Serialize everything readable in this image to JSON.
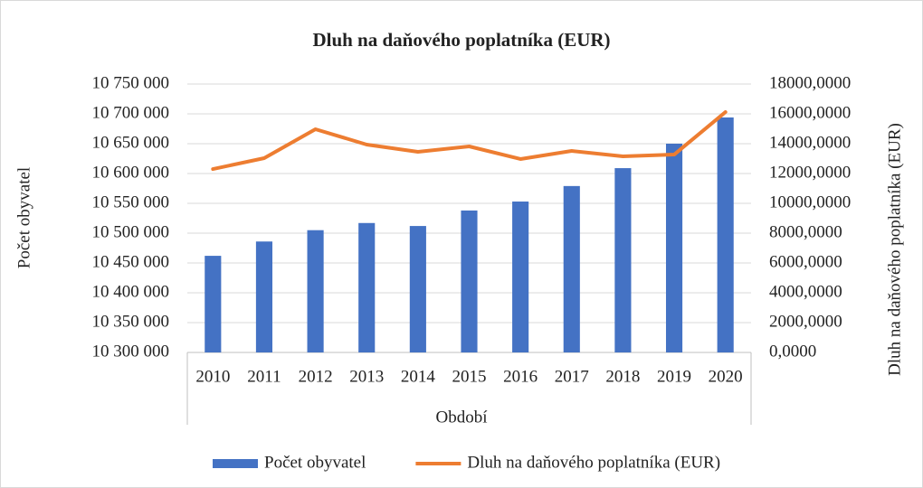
{
  "chart_data": {
    "type": "bar_line",
    "title": "Dluh na daňového poplatníka (EUR)",
    "x_label": "Období",
    "y_label": "Počet obyvatel",
    "y2_label": "Dluh na daňového poplatníka (EUR)",
    "categories": [
      "2010",
      "2011",
      "2012",
      "2013",
      "2014",
      "2015",
      "2016",
      "2017",
      "2018",
      "2019",
      "2020"
    ],
    "series": [
      {
        "name": "Počet obyvatel",
        "type": "bar",
        "color": "#4472c4",
        "values": [
          10462000,
          10486000,
          10505000,
          10517000,
          10512000,
          10538000,
          10553000,
          10579000,
          10609000,
          10650000,
          10694000
        ]
      },
      {
        "name": "Dluh na daňového poplatníka (EUR)",
        "type": "line",
        "axis": "y2",
        "color": "#ed7d31",
        "values": [
          12300,
          13030,
          14970,
          13940,
          13455,
          13818,
          12970,
          13515,
          13150,
          13270,
          16120
        ]
      }
    ],
    "ylim": [
      10300000,
      10750000
    ],
    "yticks": [
      {
        "value": 10300000,
        "label": "10 300 000"
      },
      {
        "value": 10350000,
        "label": "10 350 000"
      },
      {
        "value": 10400000,
        "label": "10 400 000"
      },
      {
        "value": 10450000,
        "label": "10 450 000"
      },
      {
        "value": 10500000,
        "label": "10 500 000"
      },
      {
        "value": 10550000,
        "label": "10 550 000"
      },
      {
        "value": 10600000,
        "label": "10 600 000"
      },
      {
        "value": 10650000,
        "label": "10 650 000"
      },
      {
        "value": 10700000,
        "label": "10 700 000"
      },
      {
        "value": 10750000,
        "label": "10 750 000"
      }
    ],
    "y2lim": [
      0,
      18000
    ],
    "y2ticks": [
      {
        "value": 0,
        "label": "0,0000"
      },
      {
        "value": 2000,
        "label": "2000,0000"
      },
      {
        "value": 4000,
        "label": "4000,0000"
      },
      {
        "value": 6000,
        "label": "6000,0000"
      },
      {
        "value": 8000,
        "label": "8000,0000"
      },
      {
        "value": 10000,
        "label": "10000,0000"
      },
      {
        "value": 12000,
        "label": "12000,0000"
      },
      {
        "value": 14000,
        "label": "14000,0000"
      },
      {
        "value": 16000,
        "label": "16000,0000"
      },
      {
        "value": 18000,
        "label": "18000,0000"
      }
    ],
    "grid": true,
    "legend": "bottom"
  }
}
